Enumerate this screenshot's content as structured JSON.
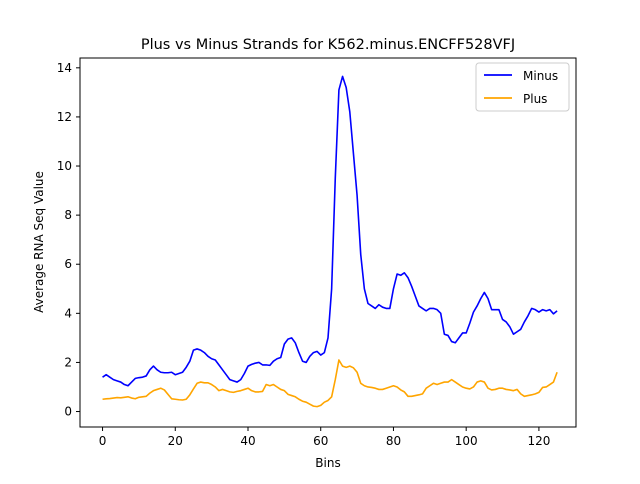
{
  "chart_data": {
    "type": "line",
    "title": "Plus vs Minus Strands for K562.minus.ENCFF528VFJ",
    "xlabel": "Bins",
    "ylabel": "Average RNA Seq Value",
    "xlim": [
      -6.2,
      130.2
    ],
    "ylim": [
      -0.63,
      14.4
    ],
    "xticks": [
      0,
      20,
      40,
      60,
      80,
      100,
      120
    ],
    "yticks": [
      0,
      2,
      4,
      6,
      8,
      10,
      12,
      14
    ],
    "grid": false,
    "legend_position": "top-right",
    "series": [
      {
        "name": "Minus",
        "color": "#0000ff",
        "values": [
          1.4,
          1.5,
          1.4,
          1.3,
          1.25,
          1.2,
          1.1,
          1.05,
          1.2,
          1.35,
          1.38,
          1.4,
          1.45,
          1.7,
          1.85,
          1.7,
          1.6,
          1.58,
          1.58,
          1.6,
          1.5,
          1.55,
          1.6,
          1.8,
          2.05,
          2.5,
          2.55,
          2.5,
          2.4,
          2.25,
          2.15,
          2.1,
          1.9,
          1.7,
          1.5,
          1.3,
          1.25,
          1.2,
          1.3,
          1.55,
          1.85,
          1.92,
          1.97,
          2.0,
          1.9,
          1.9,
          1.88,
          2.05,
          2.15,
          2.2,
          2.75,
          2.95,
          3.0,
          2.8,
          2.4,
          2.05,
          2.0,
          2.25,
          2.4,
          2.45,
          2.3,
          2.4,
          3.0,
          5.0,
          9.5,
          13.1,
          13.65,
          13.2,
          12.2,
          10.5,
          8.8,
          6.4,
          5.0,
          4.4,
          4.3,
          4.2,
          4.35,
          4.25,
          4.2,
          4.2,
          5.0,
          5.6,
          5.55,
          5.65,
          5.45,
          5.1,
          4.7,
          4.3,
          4.2,
          4.1,
          4.2,
          4.2,
          4.15,
          4.0,
          3.15,
          3.1,
          2.85,
          2.8,
          3.0,
          3.2,
          3.2,
          3.6,
          4.05,
          4.3,
          4.6,
          4.85,
          4.6,
          4.15,
          4.15,
          4.15,
          3.75,
          3.65,
          3.45,
          3.15,
          3.25,
          3.35,
          3.65,
          3.9,
          4.2,
          4.15,
          4.05,
          4.15,
          4.1,
          4.15,
          3.98,
          4.1
        ]
      },
      {
        "name": "Plus",
        "color": "#ffa500",
        "values": [
          0.5,
          0.52,
          0.53,
          0.55,
          0.57,
          0.56,
          0.58,
          0.6,
          0.55,
          0.52,
          0.58,
          0.6,
          0.62,
          0.75,
          0.85,
          0.9,
          0.95,
          0.88,
          0.7,
          0.52,
          0.5,
          0.48,
          0.47,
          0.5,
          0.68,
          0.92,
          1.15,
          1.2,
          1.17,
          1.17,
          1.1,
          1.0,
          0.85,
          0.9,
          0.85,
          0.8,
          0.78,
          0.82,
          0.85,
          0.9,
          0.95,
          0.85,
          0.8,
          0.8,
          0.82,
          1.1,
          1.05,
          1.1,
          1.0,
          0.9,
          0.85,
          0.7,
          0.65,
          0.6,
          0.5,
          0.42,
          0.38,
          0.3,
          0.22,
          0.2,
          0.25,
          0.38,
          0.45,
          0.6,
          1.3,
          2.1,
          1.85,
          1.8,
          1.85,
          1.78,
          1.6,
          1.15,
          1.05,
          1.0,
          0.98,
          0.95,
          0.9,
          0.9,
          0.95,
          1.0,
          1.05,
          1.0,
          0.88,
          0.8,
          0.62,
          0.62,
          0.65,
          0.68,
          0.72,
          0.95,
          1.05,
          1.15,
          1.1,
          1.15,
          1.2,
          1.2,
          1.3,
          1.2,
          1.1,
          1.0,
          0.95,
          0.92,
          1.0,
          1.2,
          1.25,
          1.2,
          0.95,
          0.88,
          0.9,
          0.95,
          0.95,
          0.9,
          0.88,
          0.85,
          0.9,
          0.72,
          0.62,
          0.65,
          0.68,
          0.72,
          0.78,
          0.98,
          1.0,
          1.1,
          1.2,
          1.6
        ]
      }
    ]
  }
}
